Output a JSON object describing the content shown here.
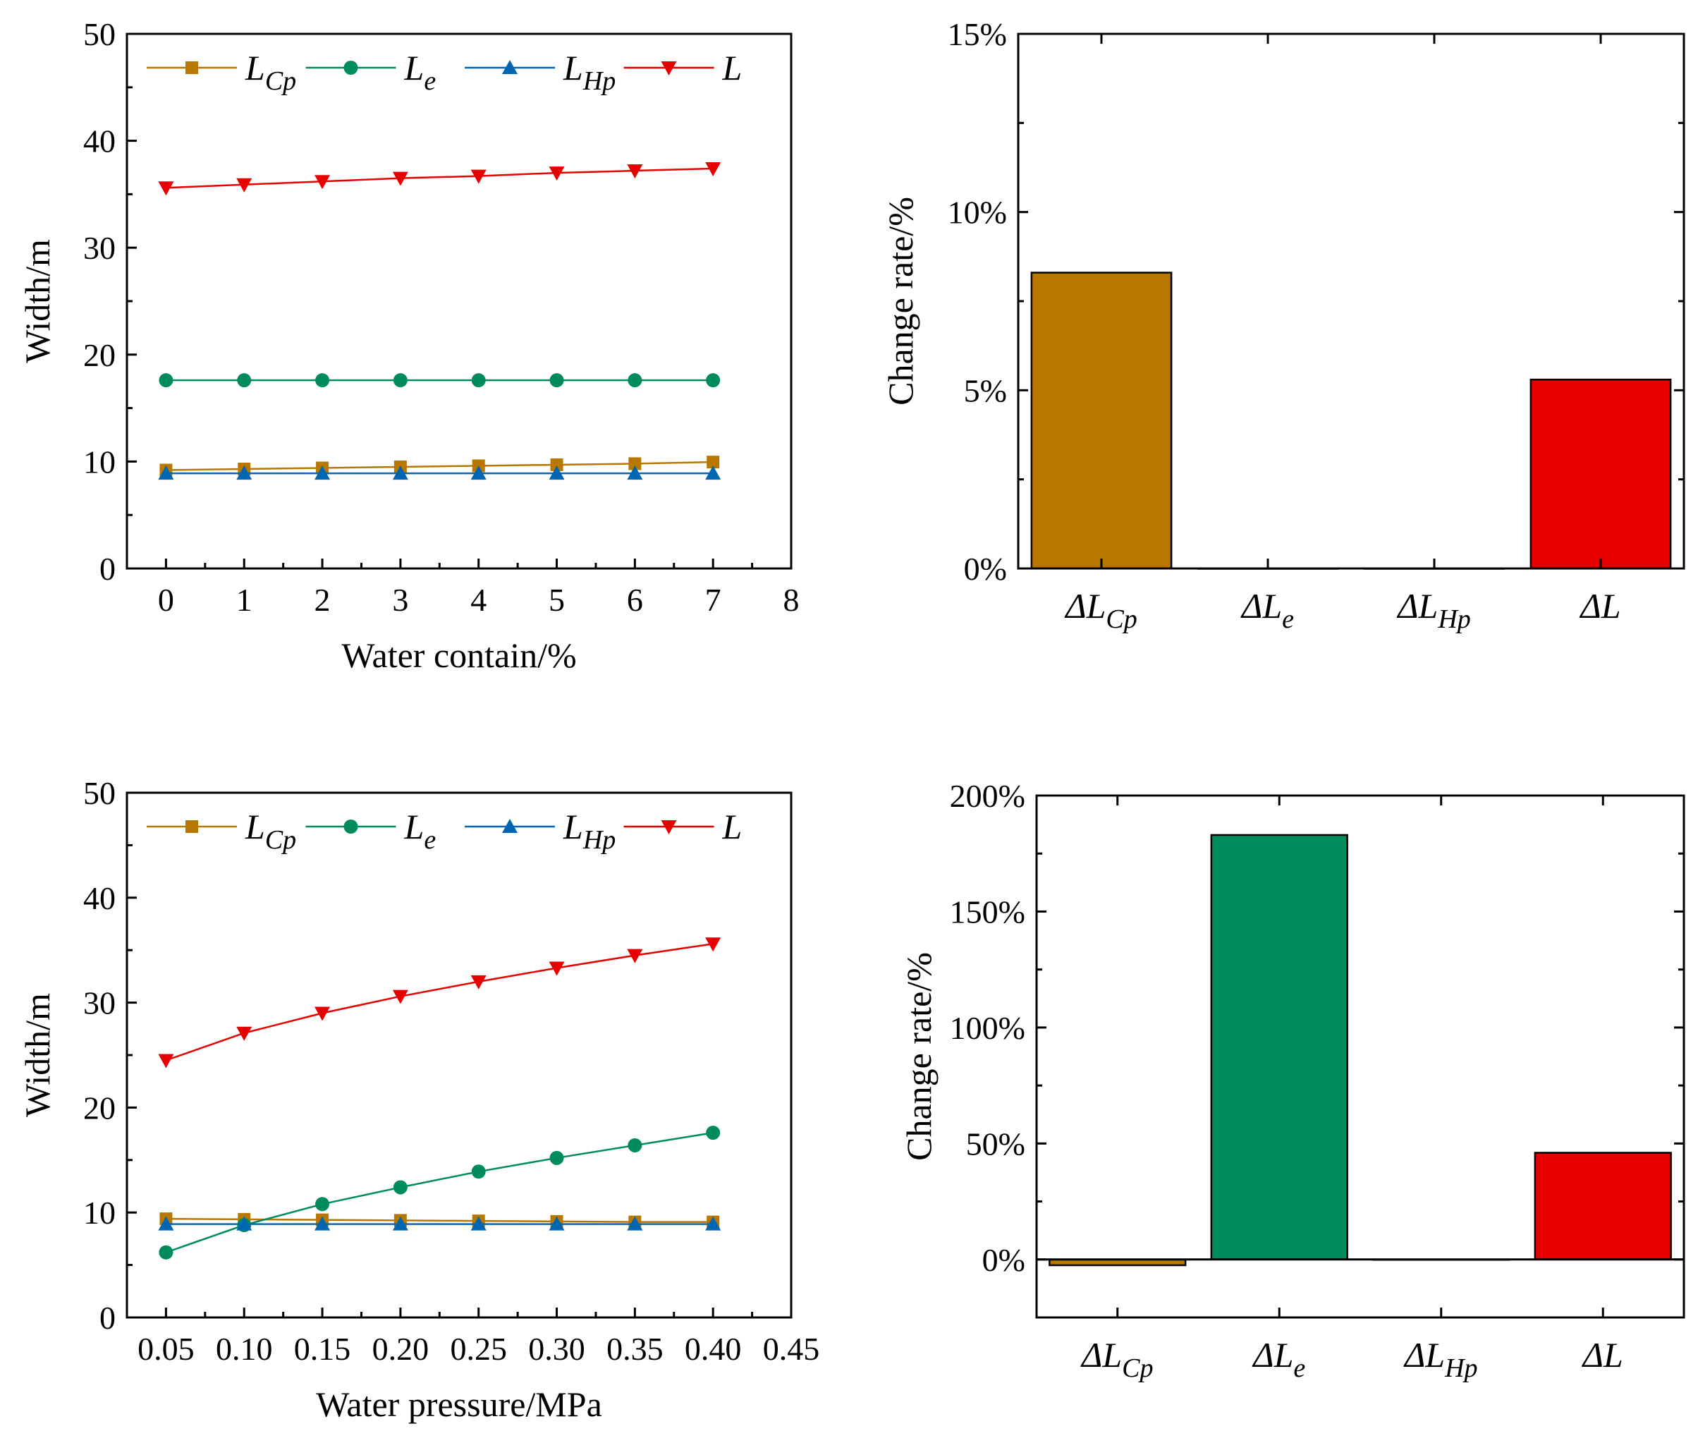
{
  "chart_data": [
    {
      "type": "line",
      "xlabel": "Water contain/%",
      "ylabel": "Width/m",
      "xlim": [
        -0.5,
        8
      ],
      "ylim": [
        0,
        50
      ],
      "xticks": [
        0,
        1,
        2,
        3,
        4,
        5,
        6,
        7,
        8
      ],
      "xtick_labels": [
        "0",
        "1",
        "2",
        "3",
        "4",
        "5",
        "6",
        "7",
        "8"
      ],
      "yticks": [
        0,
        10,
        20,
        30,
        40,
        50
      ],
      "x": [
        0,
        1,
        2,
        3,
        4,
        5,
        6,
        7
      ],
      "legend": "top",
      "series": [
        {
          "name": "L",
          "sub": "Cp",
          "marker": "square",
          "color": "#b87800",
          "values": [
            9.2,
            9.3,
            9.4,
            9.5,
            9.6,
            9.7,
            9.8,
            9.95
          ]
        },
        {
          "name": "L",
          "sub": "e",
          "marker": "circle",
          "color": "#008c5a",
          "values": [
            17.6,
            17.6,
            17.6,
            17.6,
            17.6,
            17.6,
            17.6,
            17.6
          ]
        },
        {
          "name": "L",
          "sub": "Hp",
          "marker": "triangle-up",
          "color": "#0066b3",
          "values": [
            8.9,
            8.9,
            8.9,
            8.9,
            8.9,
            8.9,
            8.9,
            8.9
          ]
        },
        {
          "name": "L",
          "sub": "",
          "marker": "triangle-down",
          "color": "#e60000",
          "values": [
            35.6,
            35.9,
            36.2,
            36.5,
            36.7,
            37.0,
            37.2,
            37.4
          ]
        }
      ]
    },
    {
      "type": "bar",
      "ylabel": "Change rate/%",
      "ylim": [
        0,
        15
      ],
      "yticks": [
        0,
        5,
        10,
        15
      ],
      "ytick_labels": [
        "0%",
        "5%",
        "10%",
        "15%"
      ],
      "categories": [
        {
          "name": "ΔL",
          "sub": "Cp"
        },
        {
          "name": "ΔL",
          "sub": "e"
        },
        {
          "name": "ΔL",
          "sub": "Hp"
        },
        {
          "name": "ΔL",
          "sub": ""
        }
      ],
      "values": [
        8.3,
        0,
        0,
        5.3
      ],
      "colors": [
        "#b87800",
        "#008c5a",
        "#0066b3",
        "#e60000"
      ]
    },
    {
      "type": "line",
      "xlabel": "Water pressure/MPa",
      "ylabel": "Width/m",
      "xlim": [
        0.025,
        0.45
      ],
      "ylim": [
        0,
        50
      ],
      "xticks": [
        0.05,
        0.1,
        0.15,
        0.2,
        0.25,
        0.3,
        0.35,
        0.4,
        0.45
      ],
      "xtick_labels": [
        "0.05",
        "0.10",
        "0.15",
        "0.20",
        "0.25",
        "0.30",
        "0.35",
        "0.40",
        "0.45"
      ],
      "yticks": [
        0,
        10,
        20,
        30,
        40,
        50
      ],
      "x": [
        0.05,
        0.1,
        0.15,
        0.2,
        0.25,
        0.3,
        0.35,
        0.4
      ],
      "legend": "top",
      "series": [
        {
          "name": "L",
          "sub": "Cp",
          "marker": "square",
          "color": "#b87800",
          "values": [
            9.4,
            9.35,
            9.3,
            9.25,
            9.2,
            9.15,
            9.1,
            9.1
          ]
        },
        {
          "name": "L",
          "sub": "e",
          "marker": "circle",
          "color": "#008c5a",
          "values": [
            6.2,
            8.8,
            10.8,
            12.4,
            13.9,
            15.2,
            16.4,
            17.6
          ]
        },
        {
          "name": "L",
          "sub": "Hp",
          "marker": "triangle-up",
          "color": "#0066b3",
          "values": [
            8.9,
            8.9,
            8.9,
            8.9,
            8.9,
            8.9,
            8.9,
            8.9
          ]
        },
        {
          "name": "L",
          "sub": "",
          "marker": "triangle-down",
          "color": "#e60000",
          "values": [
            24.5,
            27.1,
            29.0,
            30.6,
            32.0,
            33.3,
            34.5,
            35.6
          ]
        }
      ]
    },
    {
      "type": "bar",
      "ylabel": "Change rate/%",
      "ylim": [
        -25,
        200
      ],
      "yticks": [
        0,
        50,
        100,
        150,
        200
      ],
      "ytick_labels": [
        "0%",
        "50%",
        "100%",
        "150%",
        "200%"
      ],
      "categories": [
        {
          "name": "ΔL",
          "sub": "Cp"
        },
        {
          "name": "ΔL",
          "sub": "e"
        },
        {
          "name": "ΔL",
          "sub": "Hp"
        },
        {
          "name": "ΔL",
          "sub": ""
        }
      ],
      "values": [
        -2.5,
        183,
        0,
        46
      ],
      "colors": [
        "#b87800",
        "#008c5a",
        "#0066b3",
        "#e60000"
      ]
    }
  ]
}
